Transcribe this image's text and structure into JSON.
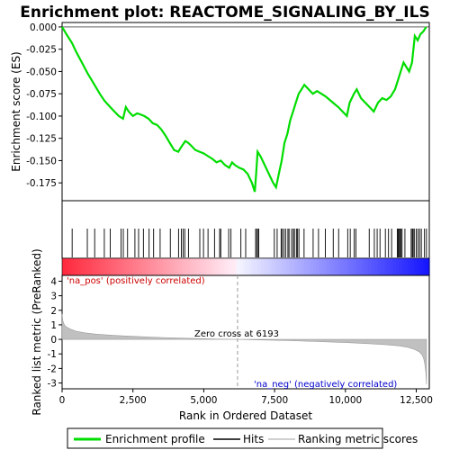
{
  "chart_data": {
    "type": "line",
    "title": "Enrichment plot: REACTOME_SIGNALING_BY_ILS",
    "top_panel": {
      "ylabel": "Enrichment score (ES)",
      "ylim": [
        -0.195,
        0.005
      ],
      "yticks": [
        "0.000",
        "-0.025",
        "-0.050",
        "-0.075",
        "-0.100",
        "-0.125",
        "-0.150",
        "-0.175"
      ],
      "ytick_values": [
        0,
        -0.025,
        -0.05,
        -0.075,
        -0.1,
        -0.125,
        -0.15,
        -0.175
      ],
      "series": [
        {
          "name": "Enrichment profile",
          "color": "#00dd00",
          "x": [
            0,
            150,
            350,
            500,
            700,
            900,
            1050,
            1200,
            1350,
            1500,
            1700,
            1850,
            2000,
            2150,
            2250,
            2350,
            2500,
            2650,
            2750,
            2900,
            3050,
            3200,
            3350,
            3500,
            3650,
            3800,
            3950,
            4100,
            4200,
            4350,
            4450,
            4550,
            4700,
            4850,
            5000,
            5150,
            5300,
            5450,
            5600,
            5750,
            5900,
            6000,
            6100,
            6250,
            6400,
            6550,
            6700,
            6800,
            6850,
            6900,
            7000,
            7150,
            7300,
            7450,
            7550,
            7650,
            7750,
            7850,
            7950,
            8050,
            8150,
            8250,
            8350,
            8450,
            8550,
            8700,
            8850,
            9000,
            9150,
            9300,
            9450,
            9600,
            9750,
            9900,
            10050,
            10150,
            10300,
            10400,
            10550,
            10700,
            10850,
            11000,
            11150,
            11300,
            11450,
            11600,
            11750,
            11850,
            11950,
            12050,
            12150,
            12250,
            12350,
            12450,
            12550,
            12650,
            12750,
            12850
          ],
          "y": [
            0.0,
            -0.008,
            -0.018,
            -0.028,
            -0.04,
            -0.052,
            -0.06,
            -0.068,
            -0.076,
            -0.083,
            -0.09,
            -0.095,
            -0.1,
            -0.103,
            -0.09,
            -0.095,
            -0.1,
            -0.097,
            -0.098,
            -0.1,
            -0.103,
            -0.108,
            -0.11,
            -0.115,
            -0.122,
            -0.13,
            -0.138,
            -0.14,
            -0.135,
            -0.128,
            -0.13,
            -0.133,
            -0.138,
            -0.14,
            -0.142,
            -0.145,
            -0.148,
            -0.152,
            -0.15,
            -0.155,
            -0.158,
            -0.152,
            -0.155,
            -0.158,
            -0.16,
            -0.165,
            -0.175,
            -0.185,
            -0.165,
            -0.14,
            -0.145,
            -0.155,
            -0.165,
            -0.175,
            -0.18,
            -0.165,
            -0.15,
            -0.13,
            -0.12,
            -0.105,
            -0.095,
            -0.085,
            -0.075,
            -0.07,
            -0.065,
            -0.07,
            -0.075,
            -0.072,
            -0.075,
            -0.078,
            -0.082,
            -0.086,
            -0.09,
            -0.095,
            -0.1,
            -0.085,
            -0.075,
            -0.07,
            -0.08,
            -0.085,
            -0.09,
            -0.095,
            -0.085,
            -0.08,
            -0.082,
            -0.078,
            -0.07,
            -0.06,
            -0.05,
            -0.04,
            -0.045,
            -0.05,
            -0.04,
            -0.01,
            -0.015,
            -0.008,
            -0.005,
            0.0
          ]
        }
      ]
    },
    "hits_panel": {
      "name": "Hits",
      "hit_ranks": [
        355,
        890,
        1150,
        1490,
        1700,
        2080,
        2160,
        2310,
        2570,
        2700,
        2870,
        3070,
        3230,
        3460,
        3820,
        4110,
        4210,
        4270,
        4330,
        4460,
        4860,
        4990,
        5150,
        5380,
        5560,
        5600,
        5880,
        5960,
        6310,
        6480,
        6830,
        6870,
        6920,
        6940,
        7490,
        7590,
        7730,
        7770,
        7830,
        7890,
        7970,
        8010,
        8100,
        8160,
        8200,
        8270,
        8310,
        8360,
        8540,
        8860,
        9050,
        9290,
        9570,
        9760,
        10080,
        10170,
        10310,
        10370,
        10840,
        11020,
        11120,
        11220,
        11410,
        11520,
        11630,
        11830,
        11860,
        11890,
        11920,
        11960,
        12000,
        12100,
        12320,
        12360,
        12390,
        12430,
        12500,
        12560,
        12620,
        12680,
        12790,
        12860
      ]
    },
    "bottom_panel": {
      "ylabel": "Ranked list metric (PreRanked)",
      "xlabel": "Rank in Ordered Dataset",
      "ylim": [
        -3.4,
        4.4
      ],
      "yticks": [
        "4",
        "3",
        "2",
        "1",
        "0",
        "-1",
        "-2",
        "-3"
      ],
      "ytick_values": [
        4,
        3,
        2,
        1,
        0,
        -1,
        -2,
        -3
      ],
      "xlim": [
        0,
        12960
      ],
      "xticks": [
        "0",
        "2,500",
        "5,000",
        "7,500",
        "10,000",
        "12,500"
      ],
      "xtick_values": [
        0,
        2500,
        5000,
        7500,
        10000,
        12500
      ],
      "series": [
        {
          "name": "Ranking metric scores",
          "color": "#c0c0c0",
          "x": [
            0,
            30,
            80,
            150,
            300,
            500,
            800,
            1200,
            1800,
            2500,
            3500,
            4500,
            5500,
            6193,
            7000,
            8000,
            9000,
            10000,
            10800,
            11400,
            11900,
            12200,
            12450,
            12600,
            12700,
            12760,
            12800,
            12840,
            12860
          ],
          "y": [
            1.75,
            1.25,
            1.0,
            0.85,
            0.7,
            0.56,
            0.45,
            0.36,
            0.28,
            0.21,
            0.13,
            0.07,
            0.02,
            0.0,
            -0.04,
            -0.09,
            -0.15,
            -0.22,
            -0.29,
            -0.36,
            -0.45,
            -0.55,
            -0.7,
            -0.85,
            -1.05,
            -1.3,
            -1.7,
            -2.3,
            -3.1
          ]
        }
      ],
      "zero_cross_label": "Zero cross at 6193",
      "zero_cross_rank": 6193,
      "pos_label": "'na_pos' (positively correlated)",
      "neg_label": "'na_neg' (negatively correlated)",
      "pos_color": "#cc0000",
      "neg_color": "#0000cc"
    },
    "legend": {
      "placement": "bottom",
      "items": [
        {
          "label": "Enrichment profile",
          "color": "#00dd00",
          "style": "thick-line"
        },
        {
          "label": "Hits",
          "color": "#000000",
          "style": "line"
        },
        {
          "label": "Ranking metric scores",
          "color": "#c0c0c0",
          "style": "line"
        }
      ]
    }
  }
}
